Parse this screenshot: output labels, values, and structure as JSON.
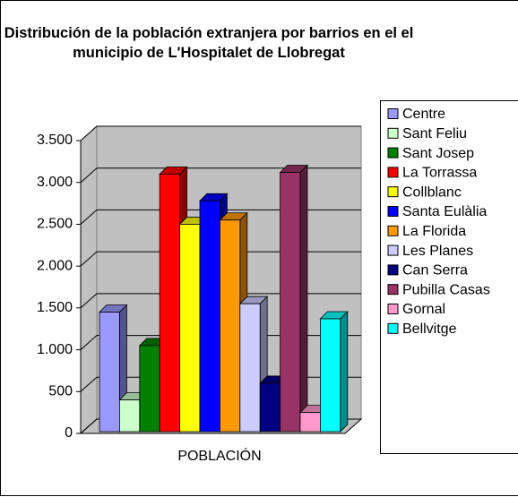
{
  "chart_data": {
    "type": "bar3d",
    "title": "Distribución de la población extranjera por barrios en el el municipio de L'Hospitalet de Llobregat",
    "categories": [
      "POBLACIÓN"
    ],
    "series": [
      {
        "name": "Centre",
        "color": "#9999ff",
        "values": [
          1450
        ]
      },
      {
        "name": "Sant Feliu",
        "color": "#ccffcc",
        "values": [
          400
        ]
      },
      {
        "name": "Sant Josep",
        "color": "#008000",
        "values": [
          1050
        ]
      },
      {
        "name": "La Torrassa",
        "color": "#ff0000",
        "values": [
          3100
        ]
      },
      {
        "name": "Collblanc",
        "color": "#ffff00",
        "values": [
          2500
        ]
      },
      {
        "name": "Santa Eulàlia",
        "color": "#0000ff",
        "values": [
          2780
        ]
      },
      {
        "name": "La Florida",
        "color": "#ff9900",
        "values": [
          2550
        ]
      },
      {
        "name": "Les Planes",
        "color": "#ccccff",
        "values": [
          1550
        ]
      },
      {
        "name": "Can Serra",
        "color": "#000080",
        "values": [
          600
        ]
      },
      {
        "name": "Pubilla Casas",
        "color": "#993366",
        "values": [
          3120
        ]
      },
      {
        "name": "Gornal",
        "color": "#ff99cc",
        "values": [
          250
        ]
      },
      {
        "name": "Bellvitge",
        "color": "#00ffff",
        "values": [
          1370
        ]
      }
    ],
    "ylim": [
      0,
      3500
    ],
    "yticks": [
      0,
      500,
      {
        "value": 1000,
        "label": "1.000"
      },
      {
        "value": 1500,
        "label": "1.500"
      },
      {
        "value": 2000,
        "label": "2.000"
      },
      {
        "value": 2500,
        "label": "2.500"
      },
      {
        "value": 3000,
        "label": "3.000"
      },
      {
        "value": 3500,
        "label": "3.500"
      }
    ],
    "grid": true,
    "legend": "right"
  }
}
